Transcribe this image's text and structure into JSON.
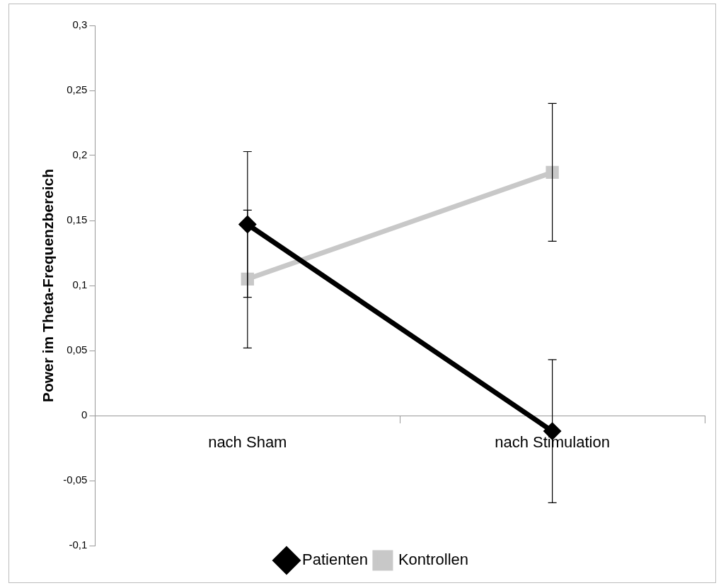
{
  "chart_data": {
    "type": "line",
    "ylabel": "Power im Theta-Frequenzbereich",
    "categories": [
      "nach Sham",
      "nach Stimulation"
    ],
    "series": [
      {
        "name": "Patienten",
        "color": "#000000",
        "values": [
          0.147,
          -0.012
        ],
        "errors": [
          0.056,
          0.055
        ],
        "marker": "diamond"
      },
      {
        "name": "Kontrollen",
        "color": "#c8c8c8",
        "values": [
          0.105,
          0.187
        ],
        "errors": [
          0.053,
          0.053
        ],
        "marker": "square"
      }
    ],
    "ylim": [
      -0.1,
      0.3
    ],
    "yticks": [
      {
        "value": -0.1,
        "label": "-0,1"
      },
      {
        "value": -0.05,
        "label": "-0,05"
      },
      {
        "value": 0,
        "label": "0"
      },
      {
        "value": 0.05,
        "label": "0,05"
      },
      {
        "value": 0.1,
        "label": "0,1"
      },
      {
        "value": 0.15,
        "label": "0,15"
      },
      {
        "value": 0.2,
        "label": "0,2"
      },
      {
        "value": 0.25,
        "label": "0,25"
      },
      {
        "value": 0.3,
        "label": "0,3"
      }
    ],
    "grid": false,
    "legend": "bottom",
    "line_style": "solid"
  }
}
